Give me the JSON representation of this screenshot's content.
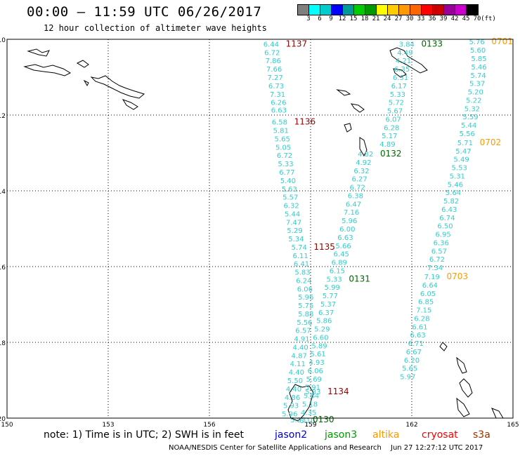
{
  "header": {
    "title": "00:00 – 11:59 UTC 06/26/2017",
    "subtitle": "12 hour collection of altimeter wave heights"
  },
  "colorbar": {
    "unit": "(ft)",
    "ticks": [
      "3",
      "6",
      "9",
      "12",
      "15",
      "18",
      "21",
      "24",
      "27",
      "30",
      "33",
      "36",
      "39",
      "42",
      "45",
      "70"
    ],
    "colors": [
      "#7f7f7f",
      "#00ffff",
      "#00cccc",
      "#0000ff",
      "#009999",
      "#00cc00",
      "#009900",
      "#ffff00",
      "#ffcc00",
      "#ff9900",
      "#ff6600",
      "#ff0000",
      "#cc0000",
      "#990099",
      "#cc00cc",
      "#000000"
    ]
  },
  "map": {
    "lat_labels": [
      "-10",
      "-12",
      "-14",
      "-16",
      "-18",
      "-20"
    ],
    "lon_labels": [
      "150",
      "153",
      "156",
      "159",
      "162",
      "165"
    ],
    "tracks": [
      {
        "id": "1137",
        "color": "#990000",
        "points": [
          {
            "lon": 157.83,
            "lat": -10.12,
            "v": "6.44"
          },
          {
            "lon": 157.86,
            "lat": -10.34,
            "v": "6.72"
          },
          {
            "lon": 157.89,
            "lat": -10.56,
            "v": "7.86"
          },
          {
            "lon": 157.92,
            "lat": -10.78,
            "v": "7.66"
          },
          {
            "lon": 157.95,
            "lat": -11.0,
            "v": "7.27"
          },
          {
            "lon": 157.98,
            "lat": -11.22,
            "v": "6.73"
          },
          {
            "lon": 158.02,
            "lat": -11.44,
            "v": "7.31"
          },
          {
            "lon": 158.05,
            "lat": -11.66,
            "v": "6.26"
          },
          {
            "lon": 158.06,
            "lat": -11.86,
            "v": "6.63"
          }
        ]
      },
      {
        "id": "1136",
        "color": "#990000",
        "points": [
          {
            "lon": 158.08,
            "lat": -12.18,
            "v": "6.58"
          },
          {
            "lon": 158.12,
            "lat": -12.4,
            "v": "5.81"
          },
          {
            "lon": 158.16,
            "lat": -12.62,
            "v": "5.65"
          },
          {
            "lon": 158.19,
            "lat": -12.84,
            "v": "5.05"
          },
          {
            "lon": 158.23,
            "lat": -13.06,
            "v": "6.72"
          },
          {
            "lon": 158.26,
            "lat": -13.28,
            "v": "5.33"
          },
          {
            "lon": 158.3,
            "lat": -13.5,
            "v": "6.77"
          },
          {
            "lon": 158.33,
            "lat": -13.72,
            "v": "5.40"
          },
          {
            "lon": 158.37,
            "lat": -13.94,
            "v": "5.63"
          },
          {
            "lon": 158.4,
            "lat": -14.16,
            "v": "5.57"
          },
          {
            "lon": 158.43,
            "lat": -14.38,
            "v": "6.32"
          },
          {
            "lon": 158.46,
            "lat": -14.6,
            "v": "5.44"
          },
          {
            "lon": 158.5,
            "lat": -14.82,
            "v": "7.47"
          },
          {
            "lon": 158.53,
            "lat": -15.04,
            "v": "5.29"
          },
          {
            "lon": 158.57,
            "lat": -15.26,
            "v": "5.34"
          }
        ]
      },
      {
        "id": "1135",
        "color": "#990000",
        "points": [
          {
            "lon": 158.66,
            "lat": -15.48,
            "v": "5.74"
          },
          {
            "lon": 158.7,
            "lat": -15.7,
            "v": "6.11"
          },
          {
            "lon": 158.73,
            "lat": -15.92,
            "v": "6.41"
          },
          {
            "lon": 158.76,
            "lat": -16.14,
            "v": "5.83"
          },
          {
            "lon": 158.8,
            "lat": -16.36,
            "v": "6.24"
          },
          {
            "lon": 158.83,
            "lat": -16.58,
            "v": "6.06"
          },
          {
            "lon": 158.86,
            "lat": -16.8,
            "v": "5.96"
          },
          {
            "lon": 158.86,
            "lat": -17.02,
            "v": "5.75"
          },
          {
            "lon": 158.86,
            "lat": -17.24,
            "v": "5.88"
          },
          {
            "lon": 158.82,
            "lat": -17.46,
            "v": "5.56"
          },
          {
            "lon": 158.78,
            "lat": -17.68,
            "v": "6.57"
          },
          {
            "lon": 158.74,
            "lat": -17.9,
            "v": "4.91"
          },
          {
            "lon": 158.7,
            "lat": -18.12,
            "v": "4.40"
          },
          {
            "lon": 158.66,
            "lat": -18.34,
            "v": "4.87"
          },
          {
            "lon": 158.62,
            "lat": -18.56,
            "v": "4.11"
          },
          {
            "lon": 158.58,
            "lat": -18.78,
            "v": "4.40"
          },
          {
            "lon": 158.54,
            "lat": -19.0,
            "v": "5.50"
          },
          {
            "lon": 158.5,
            "lat": -19.22,
            "v": "4.40"
          },
          {
            "lon": 158.46,
            "lat": -19.44,
            "v": "4.86"
          },
          {
            "lon": 158.42,
            "lat": -19.66,
            "v": "5.93"
          },
          {
            "lon": 158.38,
            "lat": -19.88,
            "v": "5.96"
          }
        ]
      },
      {
        "id": "0133",
        "color": "#006600",
        "points": [
          {
            "lon": 161.85,
            "lat": -10.12,
            "v": "3.84"
          },
          {
            "lon": 161.8,
            "lat": -10.34,
            "v": "4.49"
          },
          {
            "lon": 161.75,
            "lat": -10.56,
            "v": "4.21"
          },
          {
            "lon": 161.71,
            "lat": -10.78,
            "v": "6.35"
          },
          {
            "lon": 161.67,
            "lat": -11.0,
            "v": "6.31"
          },
          {
            "lon": 161.62,
            "lat": -11.22,
            "v": "6.17"
          },
          {
            "lon": 161.58,
            "lat": -11.44,
            "v": "5.33"
          },
          {
            "lon": 161.54,
            "lat": -11.66,
            "v": "5.72"
          },
          {
            "lon": 161.5,
            "lat": -11.88,
            "v": "5.67"
          },
          {
            "lon": 161.45,
            "lat": -12.1,
            "v": "6.07"
          },
          {
            "lon": 161.4,
            "lat": -12.32,
            "v": "6.28"
          },
          {
            "lon": 161.34,
            "lat": -12.54,
            "v": "5.17"
          },
          {
            "lon": 161.28,
            "lat": -12.76,
            "v": "4.89"
          }
        ]
      },
      {
        "id": "0132",
        "color": "#006600",
        "points": [
          {
            "lon": 160.63,
            "lat": -13.02,
            "v": "4.82"
          },
          {
            "lon": 160.57,
            "lat": -13.24,
            "v": "4.92"
          },
          {
            "lon": 160.51,
            "lat": -13.46,
            "v": "6.32"
          },
          {
            "lon": 160.45,
            "lat": -13.68,
            "v": "6.27"
          },
          {
            "lon": 160.39,
            "lat": -13.9,
            "v": "6.72"
          },
          {
            "lon": 160.33,
            "lat": -14.12,
            "v": "6.38"
          },
          {
            "lon": 160.27,
            "lat": -14.34,
            "v": "6.47"
          },
          {
            "lon": 160.21,
            "lat": -14.56,
            "v": "7.16"
          },
          {
            "lon": 160.15,
            "lat": -14.78,
            "v": "5.96"
          },
          {
            "lon": 160.09,
            "lat": -15.0,
            "v": "6.00"
          },
          {
            "lon": 160.03,
            "lat": -15.22,
            "v": "6.63"
          },
          {
            "lon": 159.97,
            "lat": -15.44,
            "v": "5.66"
          },
          {
            "lon": 159.91,
            "lat": -15.66,
            "v": "6.45"
          },
          {
            "lon": 159.85,
            "lat": -15.88,
            "v": "6.89"
          },
          {
            "lon": 159.79,
            "lat": -16.1,
            "v": "6.15"
          }
        ]
      },
      {
        "id": "0131",
        "color": "#006600",
        "points": [
          {
            "lon": 159.7,
            "lat": -16.32,
            "v": "5.33"
          },
          {
            "lon": 159.64,
            "lat": -16.54,
            "v": "5.99"
          },
          {
            "lon": 159.58,
            "lat": -16.76,
            "v": "5.77"
          },
          {
            "lon": 159.52,
            "lat": -16.98,
            "v": "5.37"
          },
          {
            "lon": 159.46,
            "lat": -17.2,
            "v": "6.37"
          },
          {
            "lon": 159.4,
            "lat": -17.42,
            "v": "5.86"
          },
          {
            "lon": 159.34,
            "lat": -17.64,
            "v": "5.29"
          },
          {
            "lon": 159.3,
            "lat": -17.86,
            "v": "6.60"
          },
          {
            "lon": 159.26,
            "lat": -18.08,
            "v": "5.89"
          },
          {
            "lon": 159.22,
            "lat": -18.3,
            "v": "5.61"
          },
          {
            "lon": 159.18,
            "lat": -18.52,
            "v": "4.93"
          },
          {
            "lon": 159.14,
            "lat": -18.74,
            "v": "6.06"
          },
          {
            "lon": 159.1,
            "lat": -18.96,
            "v": "5.69"
          },
          {
            "lon": 159.06,
            "lat": -19.18,
            "v": "5.91"
          },
          {
            "lon": 159.02,
            "lat": -19.4,
            "v": "5.84"
          },
          {
            "lon": 158.98,
            "lat": -19.62,
            "v": "5.18"
          },
          {
            "lon": 158.94,
            "lat": -19.84,
            "v": "4.35"
          },
          {
            "lon": 158.9,
            "lat": -20.06,
            "v": "6.10"
          }
        ]
      },
      {
        "id": "1134",
        "color": "#990000",
        "points": [
          {
            "lon": 159.07,
            "lat": -19.3,
            "v": "5.83"
          }
        ]
      },
      {
        "id": "0130",
        "color": "#006600",
        "points": [
          {
            "lon": 158.63,
            "lat": -20.04,
            "v": "5.93"
          }
        ]
      },
      {
        "id": "0701",
        "color": "#ff9900",
        "points": [
          {
            "lon": 163.93,
            "lat": -10.06,
            "v": "5.76"
          },
          {
            "lon": 163.96,
            "lat": -10.28,
            "v": "5.60"
          },
          {
            "lon": 163.99,
            "lat": -10.5,
            "v": "5.85"
          },
          {
            "lon": 163.99,
            "lat": -10.72,
            "v": "5.46"
          },
          {
            "lon": 163.97,
            "lat": -10.94,
            "v": "5.74"
          },
          {
            "lon": 163.94,
            "lat": -11.16,
            "v": "5.37"
          },
          {
            "lon": 163.89,
            "lat": -11.38,
            "v": "5.20"
          },
          {
            "lon": 163.84,
            "lat": -11.6,
            "v": "5.22"
          },
          {
            "lon": 163.79,
            "lat": -11.82,
            "v": "5.32"
          },
          {
            "lon": 163.74,
            "lat": -12.04,
            "v": "5.59"
          },
          {
            "lon": 163.69,
            "lat": -12.26,
            "v": "5.44"
          },
          {
            "lon": 163.64,
            "lat": -12.48,
            "v": "5.56"
          }
        ]
      },
      {
        "id": "0702",
        "color": "#ff9900",
        "points": [
          {
            "lon": 163.58,
            "lat": -12.72,
            "v": "5.71"
          },
          {
            "lon": 163.53,
            "lat": -12.94,
            "v": "5.47"
          },
          {
            "lon": 163.47,
            "lat": -13.16,
            "v": "5.49"
          },
          {
            "lon": 163.41,
            "lat": -13.38,
            "v": "5.53"
          },
          {
            "lon": 163.35,
            "lat": -13.6,
            "v": "5.31"
          },
          {
            "lon": 163.29,
            "lat": -13.82,
            "v": "5.46"
          },
          {
            "lon": 163.23,
            "lat": -14.04,
            "v": "5.64"
          },
          {
            "lon": 163.17,
            "lat": -14.26,
            "v": "5.82"
          },
          {
            "lon": 163.11,
            "lat": -14.48,
            "v": "6.43"
          },
          {
            "lon": 163.05,
            "lat": -14.7,
            "v": "6.74"
          },
          {
            "lon": 162.99,
            "lat": -14.92,
            "v": "6.50"
          },
          {
            "lon": 162.93,
            "lat": -15.14,
            "v": "6.95"
          },
          {
            "lon": 162.87,
            "lat": -15.36,
            "v": "6.36"
          },
          {
            "lon": 162.81,
            "lat": -15.58,
            "v": "6.57"
          },
          {
            "lon": 162.75,
            "lat": -15.8,
            "v": "6.72"
          },
          {
            "lon": 162.69,
            "lat": -16.02,
            "v": "7.34"
          }
        ]
      },
      {
        "id": "0703",
        "color": "#ff9900",
        "points": [
          {
            "lon": 162.6,
            "lat": -16.26,
            "v": "7.19"
          },
          {
            "lon": 162.54,
            "lat": -16.48,
            "v": "6.64"
          },
          {
            "lon": 162.48,
            "lat": -16.7,
            "v": "6.05"
          },
          {
            "lon": 162.42,
            "lat": -16.92,
            "v": "6.85"
          },
          {
            "lon": 162.36,
            "lat": -17.14,
            "v": "7.15"
          },
          {
            "lon": 162.3,
            "lat": -17.36,
            "v": "6.28"
          },
          {
            "lon": 162.24,
            "lat": -17.58,
            "v": "6.61"
          },
          {
            "lon": 162.18,
            "lat": -17.8,
            "v": "6.63"
          },
          {
            "lon": 162.12,
            "lat": -18.02,
            "v": "6.71"
          },
          {
            "lon": 162.06,
            "lat": -18.24,
            "v": "6.67"
          },
          {
            "lon": 162.0,
            "lat": -18.46,
            "v": "6.20"
          },
          {
            "lon": 161.94,
            "lat": -18.68,
            "v": "5.65"
          },
          {
            "lon": 161.88,
            "lat": -18.9,
            "v": "5.97"
          }
        ]
      }
    ]
  },
  "legend": {
    "note": "note: 1) Time is in UTC; 2) SWH is in feet",
    "jason2": {
      "label": "jason2",
      "color": "#0000cc"
    },
    "jason3": {
      "label": "jason3",
      "color": "#009900"
    },
    "altika": {
      "label": "altika",
      "color": "#ff9900"
    },
    "cryosat": {
      "label": "cryosat",
      "color": "#ff0000"
    },
    "s3a": {
      "label": "s3a",
      "color": "#993300"
    }
  },
  "footer": {
    "credit": "NOAA/NESDIS Center for Satellite Applications and Research",
    "timestamp": "Jun 27 12:27:12 UTC 2017"
  }
}
